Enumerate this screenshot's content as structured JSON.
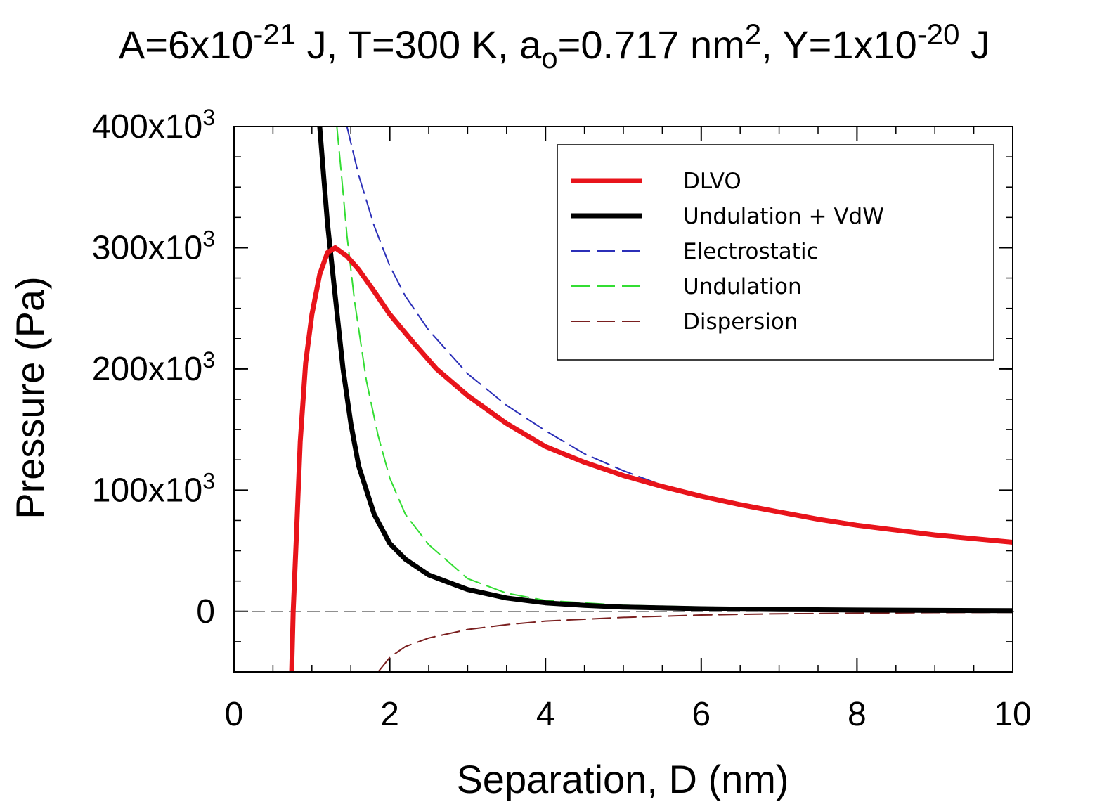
{
  "chart_data": {
    "type": "line",
    "title": {
      "parts": [
        {
          "text": "A=6x10"
        },
        {
          "text": "-21",
          "sup": true
        },
        {
          "text": " J, T=300 K, a"
        },
        {
          "text": "o",
          "sub": true
        },
        {
          "text": "=0.717 nm"
        },
        {
          "text": "2",
          "sup": true
        },
        {
          "text": ", Y=1x10"
        },
        {
          "text": "-20",
          "sup": true
        },
        {
          "text": " J"
        }
      ]
    },
    "xlabel": "Separation, D (nm)",
    "ylabel": "Pressure (Pa)",
    "xlim": [
      0,
      10
    ],
    "ylim": [
      -50000,
      400000
    ],
    "x_ticks": [
      {
        "value": 0,
        "label": "0"
      },
      {
        "value": 2,
        "label": "2"
      },
      {
        "value": 4,
        "label": "4"
      },
      {
        "value": 6,
        "label": "6"
      },
      {
        "value": 8,
        "label": "8"
      },
      {
        "value": 10,
        "label": "10"
      }
    ],
    "y_ticks": [
      {
        "value": 0,
        "label": "0"
      },
      {
        "value": 100000,
        "label": "100x10",
        "sup": "3"
      },
      {
        "value": 200000,
        "label": "200x10",
        "sup": "3"
      },
      {
        "value": 300000,
        "label": "300x10",
        "sup": "3"
      },
      {
        "value": 400000,
        "label": "400x10",
        "sup": "3"
      }
    ],
    "zero_line": true,
    "grid": false,
    "legend_position": "top-right",
    "series": [
      {
        "name": "DLVO",
        "color": "#e8141b",
        "style": "solid",
        "width": "thick",
        "points": [
          [
            0.74,
            -50000
          ],
          [
            0.76,
            0
          ],
          [
            0.8,
            60000
          ],
          [
            0.85,
            140000
          ],
          [
            0.92,
            205000
          ],
          [
            1.0,
            245000
          ],
          [
            1.1,
            278000
          ],
          [
            1.2,
            296000
          ],
          [
            1.3,
            300000
          ],
          [
            1.45,
            293000
          ],
          [
            1.6,
            282000
          ],
          [
            1.8,
            264000
          ],
          [
            2.0,
            245000
          ],
          [
            2.3,
            222000
          ],
          [
            2.6,
            200000
          ],
          [
            3.0,
            178000
          ],
          [
            3.5,
            155000
          ],
          [
            4.0,
            136000
          ],
          [
            4.5,
            123000
          ],
          [
            5.0,
            112000
          ],
          [
            5.5,
            103000
          ],
          [
            6.0,
            95000
          ],
          [
            6.5,
            88000
          ],
          [
            7.0,
            82000
          ],
          [
            7.5,
            76000
          ],
          [
            8.0,
            71000
          ],
          [
            8.5,
            67000
          ],
          [
            9.0,
            63000
          ],
          [
            9.5,
            60000
          ],
          [
            10.0,
            57000
          ]
        ]
      },
      {
        "name": "Undulation + VdW",
        "color": "#000000",
        "style": "solid",
        "width": "thick",
        "points": [
          [
            1.1,
            400000
          ],
          [
            1.15,
            360000
          ],
          [
            1.2,
            320000
          ],
          [
            1.3,
            260000
          ],
          [
            1.4,
            200000
          ],
          [
            1.5,
            155000
          ],
          [
            1.6,
            120000
          ],
          [
            1.8,
            80000
          ],
          [
            2.0,
            56000
          ],
          [
            2.2,
            43000
          ],
          [
            2.5,
            30000
          ],
          [
            3.0,
            18000
          ],
          [
            3.5,
            11000
          ],
          [
            4.0,
            7000
          ],
          [
            4.5,
            5000
          ],
          [
            5.0,
            3500
          ],
          [
            6.0,
            2200
          ],
          [
            7.0,
            1500
          ],
          [
            8.0,
            1100
          ],
          [
            9.0,
            800
          ],
          [
            10.0,
            600
          ]
        ]
      },
      {
        "name": "Electrostatic",
        "color": "#2b2fb8",
        "style": "dashed",
        "width": "thin",
        "points": [
          [
            1.45,
            400000
          ],
          [
            1.6,
            360000
          ],
          [
            1.8,
            318000
          ],
          [
            2.0,
            285000
          ],
          [
            2.2,
            260000
          ],
          [
            2.5,
            232000
          ],
          [
            3.0,
            196000
          ],
          [
            3.5,
            170000
          ],
          [
            4.0,
            149000
          ],
          [
            4.5,
            130000
          ],
          [
            5.0,
            116000
          ],
          [
            5.5,
            104000
          ],
          [
            6.0,
            96000
          ],
          [
            6.5,
            89000
          ],
          [
            7.0,
            83000
          ],
          [
            7.5,
            77000
          ],
          [
            8.0,
            72000
          ],
          [
            8.5,
            68000
          ],
          [
            9.0,
            64000
          ],
          [
            9.5,
            60000
          ],
          [
            10.0,
            57000
          ]
        ]
      },
      {
        "name": "Undulation",
        "color": "#33dd33",
        "style": "dashed",
        "width": "thin",
        "points": [
          [
            1.32,
            400000
          ],
          [
            1.38,
            360000
          ],
          [
            1.45,
            310000
          ],
          [
            1.55,
            255000
          ],
          [
            1.7,
            190000
          ],
          [
            1.85,
            145000
          ],
          [
            2.0,
            110000
          ],
          [
            2.2,
            80000
          ],
          [
            2.5,
            55000
          ],
          [
            3.0,
            27000
          ],
          [
            3.5,
            15000
          ],
          [
            4.0,
            9000
          ],
          [
            5.0,
            5000
          ],
          [
            6.0,
            3500
          ],
          [
            7.0,
            2600
          ],
          [
            8.0,
            2000
          ],
          [
            9.0,
            1500
          ],
          [
            10.0,
            1200
          ]
        ]
      },
      {
        "name": "Dispersion",
        "color": "#7a1f1f",
        "style": "dashed",
        "width": "thin",
        "points": [
          [
            1.85,
            -50000
          ],
          [
            2.0,
            -38000
          ],
          [
            2.2,
            -29000
          ],
          [
            2.5,
            -22000
          ],
          [
            3.0,
            -15000
          ],
          [
            3.5,
            -11000
          ],
          [
            4.0,
            -8000
          ],
          [
            5.0,
            -5000
          ],
          [
            6.0,
            -3000
          ],
          [
            7.0,
            -2000
          ],
          [
            8.0,
            -1500
          ],
          [
            9.0,
            -1000
          ],
          [
            10.0,
            -800
          ]
        ]
      }
    ]
  }
}
